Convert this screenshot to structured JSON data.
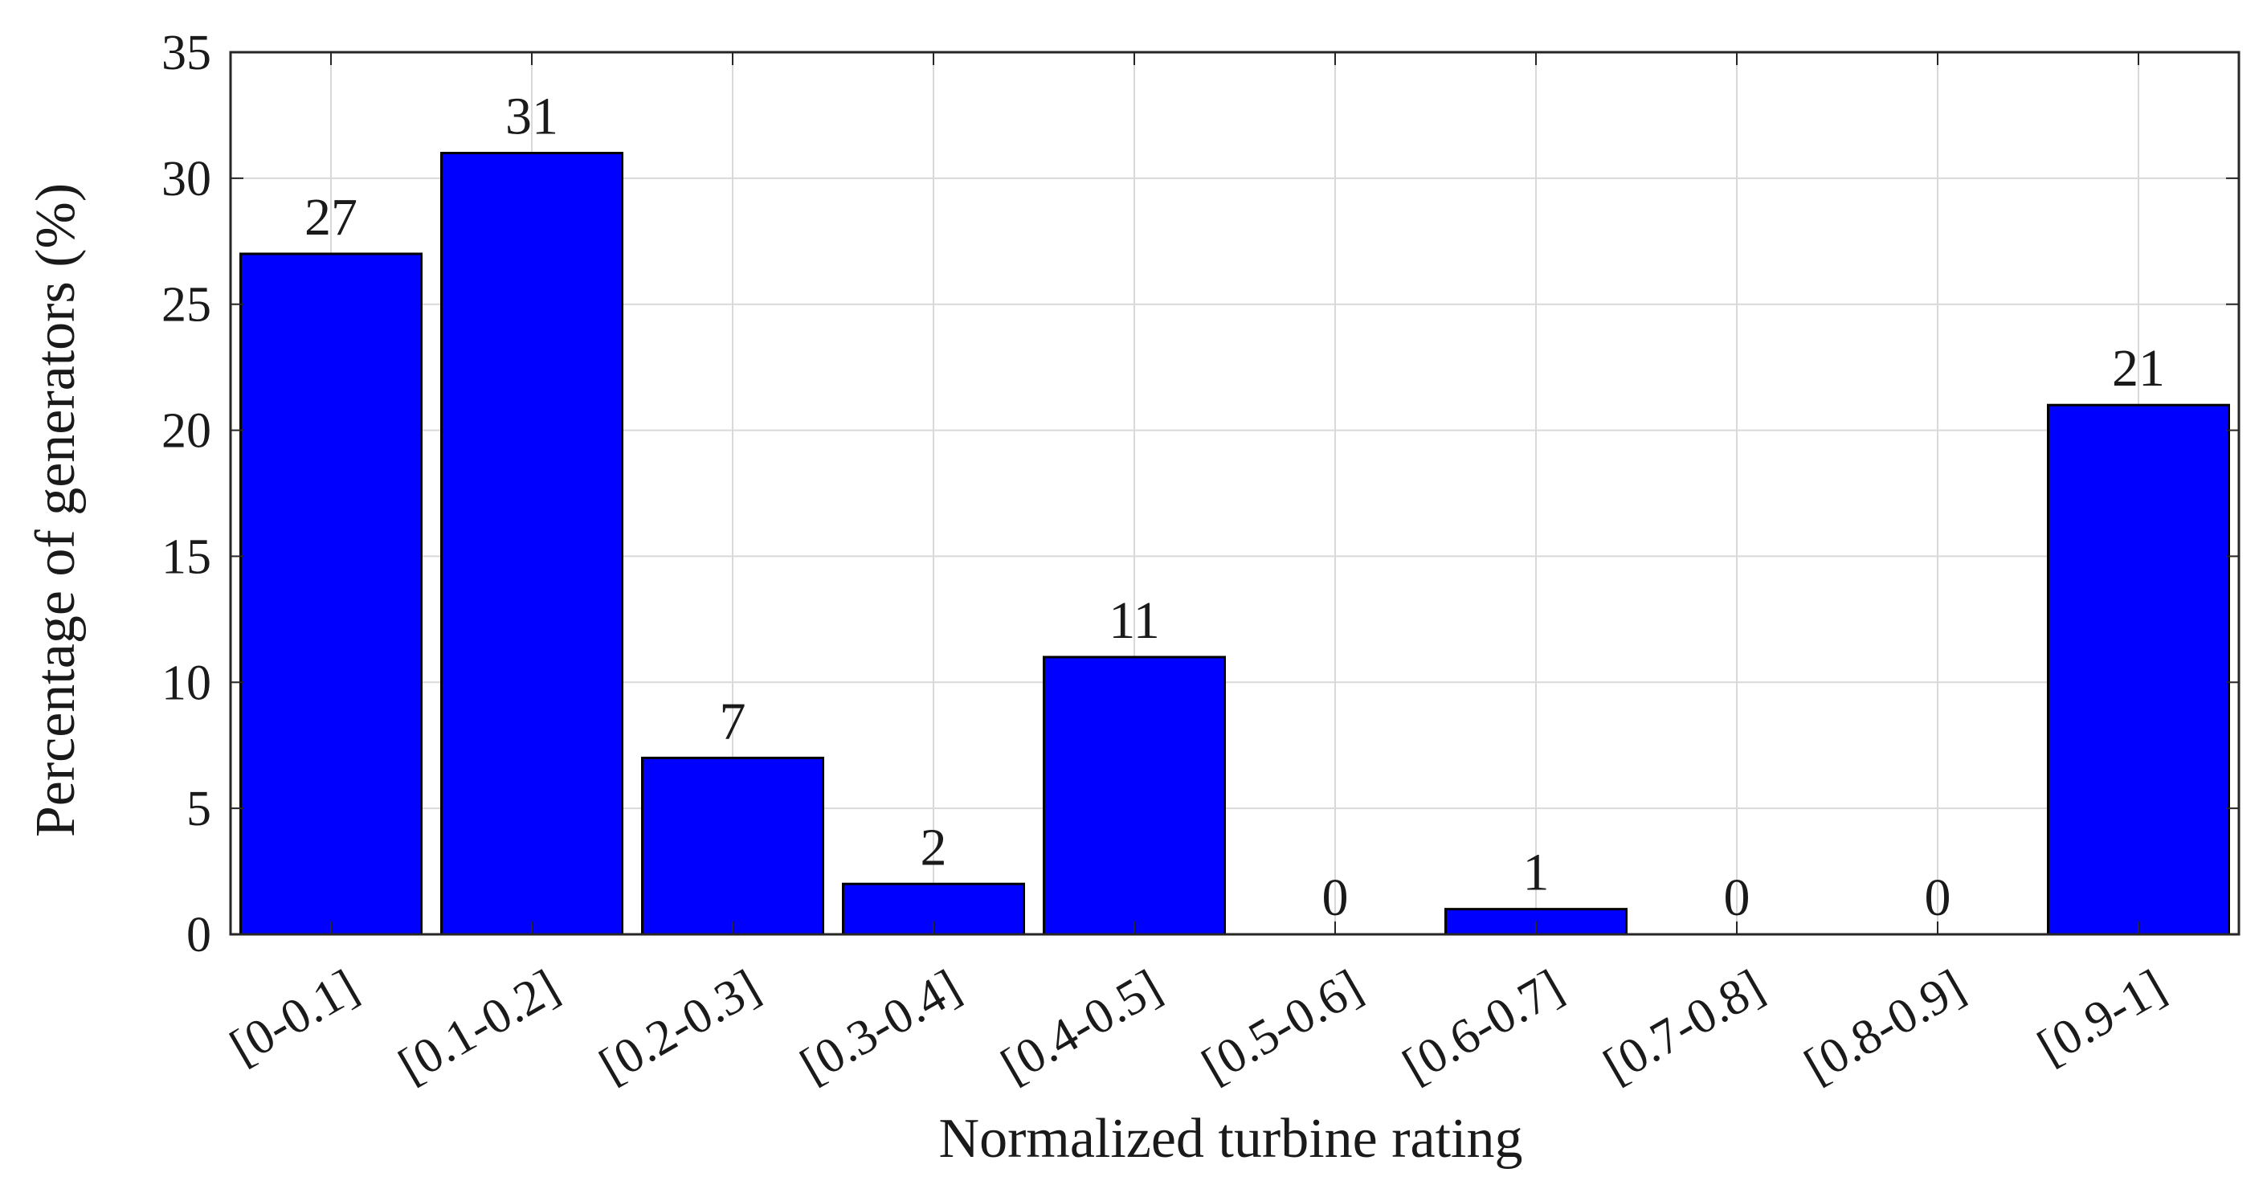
{
  "chart_data": {
    "type": "bar",
    "categories": [
      "[0-0.1]",
      "[0.1-0.2]",
      "[0.2-0.3]",
      "[0.3-0.4]",
      "[0.4-0.5]",
      "[0.5-0.6]",
      "[0.6-0.7]",
      "[0.7-0.8]",
      "[0.8-0.9]",
      "[0.9-1]"
    ],
    "values": [
      27,
      31,
      7,
      2,
      11,
      0,
      1,
      0,
      0,
      21
    ],
    "data_labels": [
      "27",
      "31",
      "7",
      "2",
      "11",
      "0",
      "1",
      "0",
      "0",
      "21"
    ],
    "xlabel": "Normalized turbine rating",
    "ylabel": "Percentage of generators (%)",
    "ylim": [
      0,
      35
    ],
    "yticks": [
      0,
      5,
      10,
      15,
      20,
      25,
      30,
      35
    ],
    "ytick_labels": [
      "0",
      "5",
      "10",
      "15",
      "20",
      "25",
      "30",
      "35"
    ],
    "grid": true,
    "bar_color": "#0000ff",
    "bar_edge_color": "#000000"
  }
}
